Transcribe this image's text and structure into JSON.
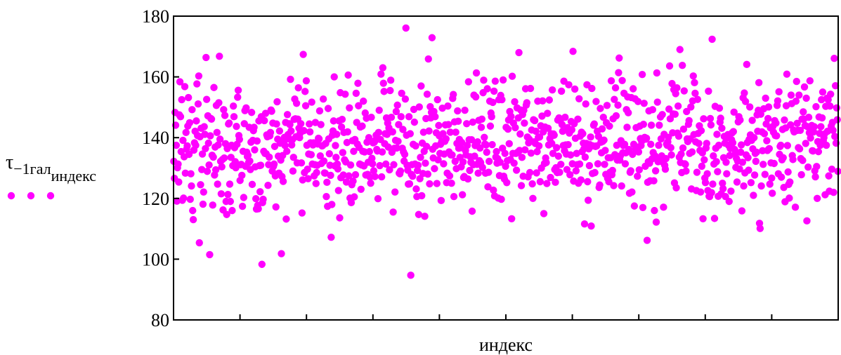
{
  "chart_data": {
    "type": "scatter",
    "title": "",
    "xlabel": "индекс",
    "ylabel": {
      "symbol": "τ",
      "subscript": "−1гал",
      "index": "индекс"
    },
    "ylim": [
      80,
      180
    ],
    "yticks": [
      80,
      100,
      120,
      140,
      160,
      180
    ],
    "xlim": [
      0,
      1000
    ],
    "x_minor_tick_count": 10,
    "grid": false,
    "legend": "left, below y-label",
    "color": "#ff00ff",
    "series": [
      {
        "values": [
          132.2,
          126.6,
          148.3,
          144.1,
          137.5,
          119.1,
          130.1,
          131.3,
          125.4,
          147.5,
          158.4,
          146.9,
          135.4,
          152.5,
          119.4,
          139.1,
          120.1,
          133.7,
          156.8,
          128.3,
          141.7,
          136.2,
          137.3,
          143.8,
          153.2,
          134.5,
          144.9,
          119.7,
          128.1,
          124.1,
          149.2,
          116.0,
          113.0,
          135.9,
          138.3,
          142.1,
          137.5,
          145.5,
          157.7,
          140.7,
          151.1,
          160.3,
          105.4,
          140.3,
          124.5,
          143.1,
          129.5,
          134.6,
          118.1,
          122.1,
          143.6,
          141.1,
          136.4,
          166.4,
          152.6,
          128.9,
          147.2,
          138.2,
          131.0,
          101.5,
          140.6,
          146.3,
          146.1,
          134.2,
          117.8,
          133.6,
          156.5,
          127.7,
          136.9,
          129.4,
          150.6,
          141.7,
          124.7,
          137.6,
          151.5,
          166.8,
          139.5,
          132.2,
          121.5,
          130.4,
          132.8,
          116.2,
          149.2,
          133.3,
          147.3,
          138.0,
          119.0,
          114.7,
          136.4,
          121.3,
          144.5,
          144.8,
          124.7,
          119.0,
          133.5,
          137.5,
          116.0,
          130.8,
          150.4,
          146.9,
          136.7,
          132.1,
          130.1,
          143.7,
          137.8,
          153.3,
          155.6,
          140.7,
          139.4,
          125.9,
          131.1,
          131.2,
          127.6,
          117.4,
          135.5,
          120.3,
          144.6,
          148.9,
          130.6,
          149.8,
          135.2,
          133.8,
          134.2,
          131.8,
          143.4,
          132.3,
          129.5,
          138.5,
          148.3,
          124.6,
          139.1,
          142.3,
          143.4,
          136.0,
          130.4,
          119.9,
          116.5,
          138.9,
          117.7,
          116.6,
          145.5,
          130.8,
          122.2,
          130.9,
          146.9,
          98.3,
          118.6,
          119.7,
          135.5,
          145.6,
          134.8,
          148.0,
          134.7,
          140.9,
          140.3,
          124.3,
          131.1,
          133.6,
          140.6,
          141.7,
          149.1,
          148.7,
          129.0,
          144.8,
          130.6,
          131.3,
          137.1,
          127.4,
          117.2,
          144.5,
          151.8,
          139.5,
          133.9,
          128.3,
          142.2,
          138.2,
          132.6,
          101.8,
          127.2,
          134.1,
          125.6,
          138.8,
          140.1,
          137.4,
          145.0,
          113.2,
          135.5,
          147.6,
          141.0,
          139.6,
          144.6,
          144.3,
          159.2,
          142.2,
          137.6,
          139.3,
          129.0,
          133.5,
          146.0,
          152.7,
          146.2,
          140.3,
          151.3,
          131.7,
          146.1,
          156.4,
          143.1,
          140.0,
          141.5,
          144.6,
          131.7,
          115.2,
          126.1,
          167.4,
          142.3,
          128.5,
          155.2,
          150.5,
          158.7,
          137.5,
          129.6,
          126.5,
          134.6,
          144.5,
          141.9,
          138.3,
          134.4,
          151.7,
          131.3,
          137.6,
          138.3,
          127.4,
          131.1,
          145.0,
          124.9,
          128.5,
          130.9,
          137.9,
          139.8,
          139.6,
          148.8,
          134.0,
          144.3,
          131.5,
          137.3,
          137.4,
          152.7,
          132.3,
          128.4,
          128.3,
          138.1,
          120.6,
          125.3,
          117.4,
          149.6,
          139.6,
          134.7,
          130.9,
          127.6,
          107.2,
          118.0,
          140.8,
          142.2,
          145.5,
          160.0,
          130.7,
          137.4,
          133.5,
          141.1,
          131.3,
          129.7,
          122.6,
          145.5,
          113.6,
          154.8,
          126.8,
          143.5,
          146.0,
          135.1,
          127.7,
          141.7,
          132.7,
          154.3,
          132.0,
          125.4,
          138.4,
          141.9,
          160.6,
          127.4,
          149.8,
          120.1,
          131.0,
          118.6,
          124.5,
          139.0,
          125.7,
          135.5,
          120.5,
          139.4,
          127.8,
          154.6,
          145.0,
          137.9,
          157.9,
          150.5,
          136.8,
          131.3,
          143.5,
          123.0,
          131.0,
          143.8,
          135.5,
          152.0,
          130.7,
          135.3,
          148.1,
          127.7,
          146.4,
          138.5,
          127.9,
          131.9,
          140.0,
          135.4,
          127.0,
          125.0,
          146.7,
          133.2,
          131.4,
          138.3,
          129.1,
          138.5,
          127.2,
          139.2,
          140.8,
          136.1,
          135.6,
          119.9,
          141.7,
          149.0,
          130.8,
          139.4,
          160.9,
          127.1,
          135.3,
          163.0,
          157.9,
          155.2,
          138.0,
          141.3,
          131.3,
          146.5,
          141.1,
          144.8,
          136.9,
          143.2,
          129.4,
          155.5,
          158.9,
          146.7,
          135.2,
          141.9,
          115.5,
          131.1,
          136.5,
          122.1,
          139.1,
          148.6,
          136.6,
          150.7,
          138.8,
          144.3,
          128.3,
          128.1,
          129.0,
          146.9,
          154.6,
          136.5,
          142.7,
          135.3,
          132.3,
          134.5,
          152.7,
          176.1,
          140.8,
          130.9,
          129.3,
          124.7,
          146.9,
          124.8,
          141.3,
          94.7,
          127.9,
          131.1,
          127.3,
          137.8,
          149.3,
          145.1,
          131.3,
          137.3,
          123.1,
          120.6,
          129.2,
          130.9,
          114.7,
          150.1,
          126.5,
          133.5,
          157.0,
          120.9,
          138.2,
          128.2,
          141.8,
          135.5,
          114.1,
          131.6,
          146.3,
          137.1,
          154.3,
          128.0,
          165.9,
          142.2,
          124.8,
          150.2,
          146.5,
          148.3,
          172.9,
          136.2,
          133.3,
          148.6,
          129.8,
          146.9,
          137.3,
          141.6,
          124.9,
          152.5,
          132.7,
          144.0,
          140.6,
          134.8,
          137.8,
          119.3,
          138.8,
          149.7,
          141.3,
          131.4,
          134.6,
          138.8,
          144.2,
          139.6,
          125.2,
          128.3,
          150.4,
          144.3,
          135.3,
          127.4,
          141.8,
          134.3,
          125.0,
          134.3,
          152.9,
          154.2,
          120.6,
          145.2,
          132.2,
          141.8,
          129.8,
          138.1,
          148.8,
          145.4,
          136.5,
          139.4,
          133.5,
          136.7,
          130.4,
          138.4,
          121.2,
          132.0,
          126.9,
          127.2,
          149.0,
          135.8,
          134.3,
          144.6,
          137.5,
          126.4,
          158.4,
          139.3,
          129.2,
          133.7,
          131.9,
          139.3,
          115.8,
          145.1,
          131.1,
          154.0,
          133.9,
          137.4,
          153.4,
          161.3,
          131.2,
          138.6,
          128.3,
          145.7,
          132.4,
          136.6,
          131.8,
          143.4,
          146.1,
          130.2,
          154.8,
          158.9,
          140.1,
          137.9,
          128.3,
          137.6,
          135.2,
          156.1,
          123.8,
          128.6,
          132.2,
          152.0,
          143.8,
          148.1,
          146.9,
          137.7,
          151.6,
          122.7,
          155.3,
          120.8,
          158.6,
          133.6,
          135.4,
          131.6,
          133.1,
          120.1,
          152.5,
          127.5,
          131.9,
          153.9,
          119.7,
          152.5,
          136.5,
          159.0,
          127.3,
          126.4,
          134.8,
          130.6,
          143.4,
          125.2,
          132.4,
          142.8,
          145.8,
          138.0,
          148.6,
          132.8,
          147.0,
          113.3,
          160.2,
          134.8,
          144.8,
          131.6,
          151.8,
          143.3,
          134.8,
          129.3,
          149.8,
          135.2,
          146.5,
          168.0,
          135.8,
          141.2,
          149.1,
          124.2,
          133.5,
          147.6,
          127.3,
          149.0,
          144.8,
          136.0,
          156.1,
          150.7,
          151.5,
          140.2,
          127.1,
          138.3,
          139.5,
          128.5,
          156.2,
          134.9,
          142.5,
          124.8,
          120.0,
          145.9,
          138.6,
          145.6,
          138.1,
          142.1,
          128.4,
          135.4,
          152.0,
          140.1,
          137.3,
          140.2,
          125.5,
          143.9,
          130.0,
          147.1,
          152.1,
          141.9,
          115.0,
          131.5,
          143.5,
          133.3,
          131.8,
          124.9,
          148.0,
          143.1,
          137.6,
          152.4,
          139.7,
          126.9,
          141.3,
          138.1,
          155.7,
          134.8,
          141.2,
          140.8,
          129.5,
          125.3,
          130.1,
          136.7,
          128.5,
          145.8,
          133.9,
          146.5,
          128.6,
          145.5,
          131.2,
          155.3,
          144.3,
          142.1,
          137.4,
          158.6,
          135.7,
          146.7,
          137.6,
          134.6,
          129.5,
          143.3,
          137.7,
          157.4,
          141.5,
          127.8,
          134.3,
          145.3,
          142.6,
          131.4,
          168.4,
          125.7,
          144.6,
          156.0,
          139.8,
          129.1,
          134.8,
          131.1,
          146.1,
          125.0,
          152.8,
          131.3,
          140.5,
          126.1,
          141.8,
          135.4,
          141.3,
          138.2,
          136.3,
          111.6,
          133.6,
          151.1,
          138.1,
          157.4,
          125.5,
          119.4,
          136.3,
          130.8,
          137.7,
          140.2,
          110.9,
          156.2,
          128.2,
          137.3,
          144.1,
          144.5,
          128.5,
          137.1,
          151.9,
          137.3,
          142.1,
          131.4,
          140.4,
          123.6,
          124.4,
          149.6,
          138.5,
          135.0,
          142.9,
          138.8,
          146.7,
          139.2,
          131.2,
          135.8,
          127.9,
          144.9,
          150.6,
          126.6,
          133.4,
          125.5,
          143.8,
          128.6,
          133.4,
          158.7,
          127.8,
          129.2,
          146.2,
          124.2,
          152.6,
          134.4,
          156.4,
          147.2,
          137.5,
          132.6,
          150.7,
          161.4,
          166.2,
          132.6,
          134.0,
          139.0,
          124.1,
          158.8,
          135.0,
          137.4,
          154.6,
          137.8,
          131.4,
          135.0,
          149.2,
          143.4,
          153.4,
          148.2,
          136.1,
          121.7,
          128.6,
          129.1,
          153.2,
          122.1,
          134.5,
          156.1,
          137.8,
          117.5,
          152.8,
          136.3,
          143.3,
          136.9,
          127.3,
          151.9,
          135.3,
          129.4,
          143.8,
          139.7,
          137.4,
          138.8,
          160.8,
          117.0,
          144.4,
          151.3,
          140.1,
          130.6,
          139.5,
          139.8,
          106.2,
          125.3,
          132.1,
          148.8,
          131.6,
          125.8,
          137.8,
          144.1,
          133.0,
          149.2,
          135.1,
          125.8,
          116.0,
          134.0,
          129.1,
          112.2,
          161.3,
          151.7,
          132.1,
          137.5,
          144.1,
          132.5,
          146.8,
          139.6,
          134.0,
          147.6,
          131.9,
          117.1,
          141.1,
          130.9,
          129.6,
          133.1,
          137.9,
          137.5,
          138.6,
          140.1,
          149.4,
          163.6,
          146.2,
          136.7,
          134.3,
          157.8,
          141.6,
          147.8,
          155.8,
          125.1,
          147.7,
          154.5,
          123.5,
          156.4,
          141.5,
          150.4,
          140.5,
          133.6,
          169.0,
          131.8,
          134.6,
          128.5,
          163.8,
          136.6,
          142.8,
          155.4,
          131.4,
          131.2,
          129.0,
          148.6,
          139.6,
          138.7,
          144.4,
          145.6,
          134.8,
          139.6,
          150.1,
          123.1,
          135.3,
          152.1,
          160.3,
          141.0,
          158.1,
          154.6,
          138.6,
          122.6,
          128.6,
          152.6,
          141.4,
          138.1,
          143.9,
          135.8,
          122.1,
          142.3,
          130.6,
          135.0,
          113.3,
          146.2,
          132.7,
          126.7,
          125.2,
          136.6,
          138.1,
          128.1,
          122.6,
          155.3,
          120.7,
          120.6,
          146.3,
          144.2,
          121.9,
          172.4,
          124.7,
          134.0,
          131.3,
          113.4,
          150.3,
          136.5,
          132.1,
          141.1,
          128.8,
          120.7,
          137.5,
          149.7,
          145.1,
          146.4,
          121.5,
          143.1,
          125.0,
          123.2,
          133.4,
          140.4,
          138.2,
          120.6,
          131.9,
          128.1,
          140.0,
          141.0,
          137.5,
          119.0,
          134.1,
          136.4,
          122.4,
          139.3,
          141.6,
          138.3,
          142.0,
          148.4,
          136.1,
          134.6,
          130.2,
          133.2,
          125.4,
          132.3,
          145.2,
          146.9,
          129.7,
          145.8,
          135.2,
          137.6,
          115.9,
          131.9,
          153.1,
          124.1,
          154.7,
          128.4,
          151.9,
          134.3,
          164.1,
          138.4,
          133.4,
          129.3,
          139.4,
          150.1,
          140.9,
          125.2,
          139.1,
          145.7,
          136.3,
          121.0,
          140.0,
          127.7,
          134.8,
          132.2,
          135.2,
          147.5,
          142.1,
          149.0,
          158.1,
          111.8,
          110.1,
          147.7,
          124.1,
          141.9,
          135.7,
          131.2,
          149.5,
          141.3,
          127.9,
          153.0,
          144.5,
          139.0,
          135.8,
          146.3,
          150.1,
          136.4,
          124.7,
          143.2,
          131.7,
          126.7,
          121.7,
          143.7,
          141.8,
          131.5,
          145.6,
          140.7,
          144.8,
          140.6,
          150.6,
          152.1,
          128.1,
          155.1,
          134.5,
          137.1,
          137.5,
          127.0,
          132.7,
          142.7,
          133.4,
          123.6,
          145.8,
          118.9,
          143.2,
          150.5,
          160.9,
          137.4,
          128.7,
          124.6,
          120.1,
          125.4,
          144.2,
          154.0,
          151.2,
          134.1,
          132.8,
          142.5,
          141.9,
          142.1,
          117.1,
          152.0,
          158.5,
          144.7,
          142.4,
          136.7,
          154.0,
          136.3,
          142.4,
          133.1,
          127.8,
          146.1,
          132.5,
          148.5,
          146.1,
          156.7,
          144.0,
          138.1,
          153.0,
          112.6,
          143.6,
          130.3,
          146.7,
          141.6,
          158.7,
          139.9,
          142.9,
          144.0,
          135.7,
          135.6,
          141.9,
          143.6,
          129.1,
          127.1,
          150.2,
          130.5,
          120.0,
          138.7,
          135.4,
          146.8,
          141.4,
          137.5,
          143.6,
          152.5,
          146.5,
          155.0,
          139.0,
          140.0,
          141.2,
          121.2,
          150.3,
          137.5,
          153.0,
          142.1,
          152.5,
          127.4,
          122.4,
          150.4,
          154.3,
          143.8,
          129.6,
          145.0,
          142.4,
          122.0,
          166.1,
          140.4,
          157.1,
          138.2,
          149.8,
          145.9,
          128.9
        ]
      }
    ]
  }
}
